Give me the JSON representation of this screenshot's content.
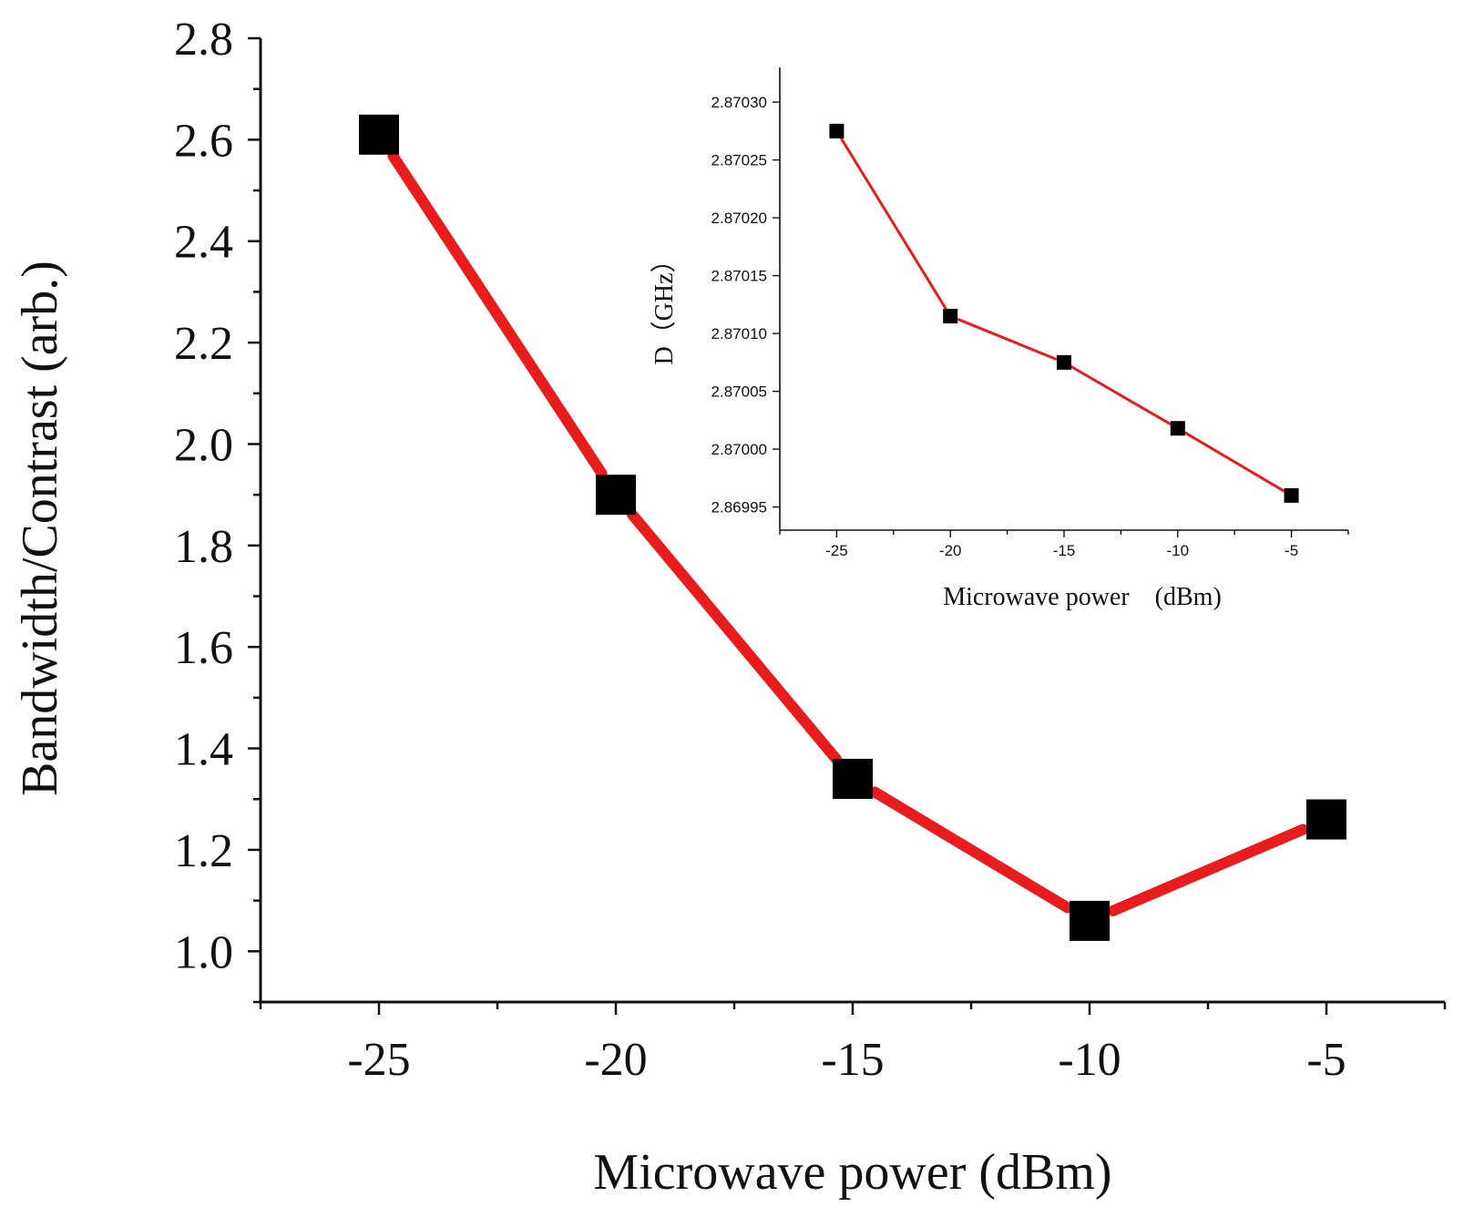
{
  "chart_data": [
    {
      "type": "line",
      "title": "",
      "xlabel": "Microwave power (dBm)",
      "ylabel": "Bandwidth/Contrast (arb.)",
      "xlim": [
        -27.5,
        -2.5
      ],
      "ylim": [
        0.9,
        2.8
      ],
      "xticks": [
        -25,
        -20,
        -15,
        -10,
        -5
      ],
      "xtick_labels": [
        "-25",
        "-20",
        "-15",
        "-10",
        "-5"
      ],
      "yticks": [
        1.0,
        1.2,
        1.4,
        1.6,
        1.8,
        2.0,
        2.2,
        2.4,
        2.6,
        2.8
      ],
      "ytick_labels": [
        "1.0",
        "1.2",
        "1.4",
        "1.6",
        "1.8",
        "2.0",
        "2.2",
        "2.4",
        "2.6",
        "2.8"
      ],
      "grid": false,
      "series": [
        {
          "name": "Bandwidth/Contrast",
          "x": [
            -25,
            -20,
            -15,
            -10,
            -5
          ],
          "y": [
            2.61,
            1.9,
            1.34,
            1.06,
            1.26
          ],
          "line_color": "#e81c1c",
          "marker_color": "#000000",
          "marker": "square"
        }
      ]
    },
    {
      "type": "line",
      "title": "",
      "role": "inset",
      "xlabel": "Microwave power　(dBm)",
      "ylabel": "D（GHz）",
      "xlim": [
        -27.5,
        -2.5
      ],
      "ylim": [
        2.86993,
        2.87033
      ],
      "xticks": [
        -25,
        -20,
        -15,
        -10,
        -5
      ],
      "xtick_labels": [
        "-25",
        "-20",
        "-15",
        "-10",
        "-5"
      ],
      "yticks": [
        2.86995,
        2.87,
        2.87005,
        2.8701,
        2.87015,
        2.8702,
        2.87025,
        2.8703
      ],
      "ytick_labels": [
        "2.86995",
        "2.87000",
        "2.87005",
        "2.87010",
        "2.87015",
        "2.87020",
        "2.87025",
        "2.87030"
      ],
      "grid": false,
      "series": [
        {
          "name": "D",
          "x": [
            -25,
            -20,
            -15,
            -10,
            -5
          ],
          "y": [
            2.870275,
            2.870115,
            2.870075,
            2.870018,
            2.86996
          ],
          "line_color": "#e81c1c",
          "marker_color": "#000000",
          "marker": "square"
        }
      ]
    }
  ]
}
